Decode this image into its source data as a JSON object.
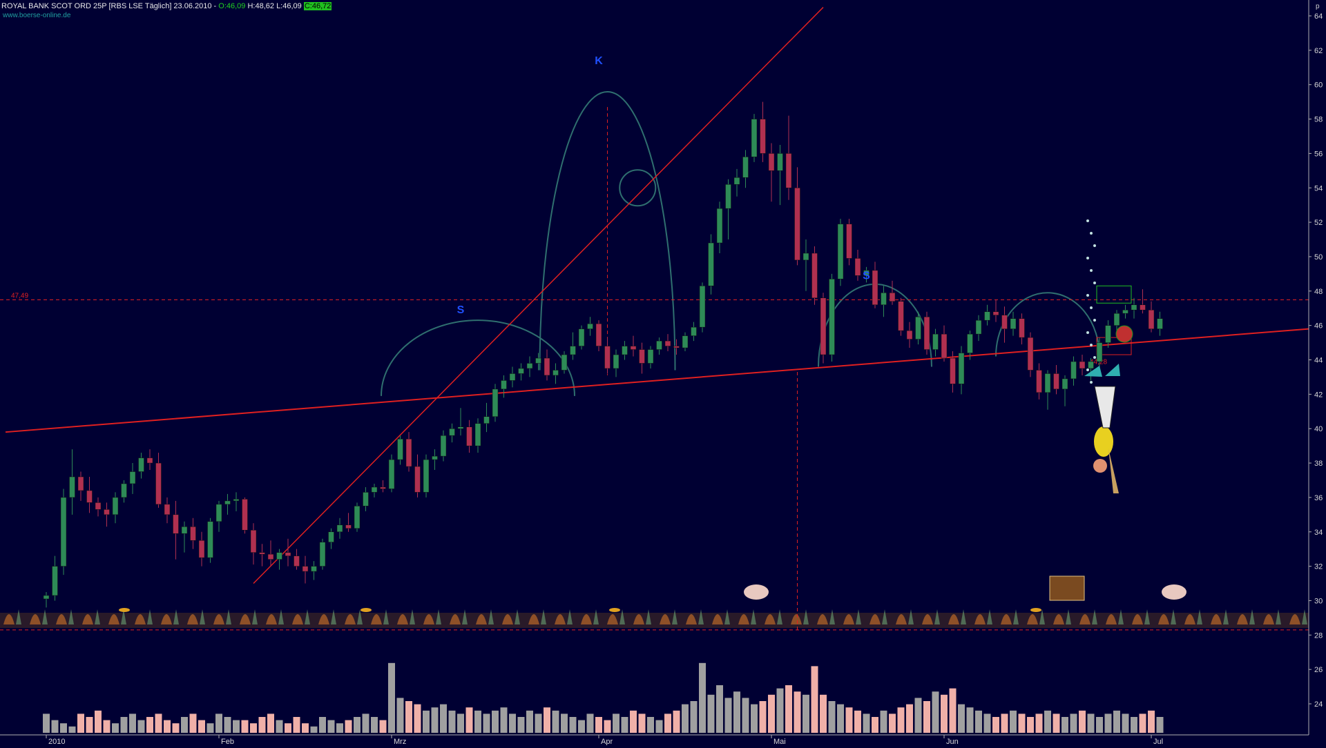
{
  "header": {
    "instrument": "ROYAL BANK SCOT ORD 25P [RBS LSE  Täglich] 23.06.2010 -",
    "open_label": "O:46,09",
    "high_label": "H:48,62",
    "low_label": "L:46,09",
    "close_label": "C:46,72",
    "watermark": "www.boerse-online.de"
  },
  "colors": {
    "background": "#000033",
    "up_candle": "#2e8b57",
    "down_candle": "#b03050",
    "volume_up": "#a0a0a0",
    "volume_down": "#f0b0a8",
    "trendline": "#e02020",
    "pattern_arc": "#2f6f6f",
    "label": "#2050ff"
  },
  "chart_data": {
    "type": "candlestick",
    "y_axis_unit": "p",
    "ylim": [
      22,
      65
    ],
    "y_ticks": [
      24,
      26,
      28,
      30,
      32,
      34,
      36,
      38,
      40,
      42,
      44,
      46,
      48,
      50,
      52,
      54,
      56,
      58,
      60,
      62,
      64
    ],
    "x_labels": [
      "2010",
      "Feb",
      "Mrz",
      "Apr",
      "Mai",
      "Jun",
      "Jul"
    ],
    "x_label_positions": [
      0,
      20,
      40,
      64,
      84,
      104,
      128
    ],
    "levels": [
      {
        "label": "47,49",
        "value": 47.49
      },
      {
        "label": "44,28",
        "value": 44.28
      }
    ],
    "pattern_labels": [
      "S",
      "K",
      "S"
    ],
    "candles": [
      [
        30.1,
        30.5,
        29.6,
        30.3
      ],
      [
        30.3,
        32.6,
        30.0,
        32.0
      ],
      [
        32.0,
        36.5,
        31.5,
        36.0
      ],
      [
        36.0,
        38.8,
        35.0,
        37.2
      ],
      [
        37.2,
        37.5,
        35.8,
        36.4
      ],
      [
        36.4,
        37.2,
        35.1,
        35.7
      ],
      [
        35.7,
        36.0,
        34.9,
        35.3
      ],
      [
        35.3,
        35.7,
        34.3,
        35.0
      ],
      [
        35.0,
        36.3,
        34.5,
        36.0
      ],
      [
        36.0,
        37.0,
        35.7,
        36.8
      ],
      [
        36.8,
        38.0,
        36.2,
        37.5
      ],
      [
        37.5,
        38.6,
        37.1,
        38.3
      ],
      [
        38.3,
        38.8,
        37.6,
        38.0
      ],
      [
        38.0,
        38.6,
        35.4,
        35.6
      ],
      [
        35.6,
        36.0,
        34.5,
        35.0
      ],
      [
        35.0,
        35.8,
        32.4,
        33.9
      ],
      [
        33.9,
        34.6,
        32.8,
        34.3
      ],
      [
        34.3,
        34.8,
        33.0,
        33.5
      ],
      [
        33.5,
        34.0,
        32.0,
        32.5
      ],
      [
        32.5,
        34.8,
        32.2,
        34.6
      ],
      [
        34.6,
        35.8,
        34.0,
        35.6
      ],
      [
        35.6,
        36.2,
        35.0,
        35.8
      ],
      [
        35.8,
        36.3,
        35.2,
        35.9
      ],
      [
        35.9,
        36.0,
        33.9,
        34.1
      ],
      [
        34.1,
        34.5,
        32.1,
        32.8
      ],
      [
        32.8,
        33.3,
        32.0,
        32.7
      ],
      [
        32.7,
        33.5,
        32.0,
        32.4
      ],
      [
        32.4,
        33.0,
        31.8,
        32.8
      ],
      [
        32.8,
        33.6,
        32.0,
        32.6
      ],
      [
        32.6,
        33.0,
        31.8,
        32.0
      ],
      [
        32.0,
        32.6,
        31.0,
        31.7
      ],
      [
        31.7,
        32.3,
        31.2,
        32.0
      ],
      [
        32.0,
        33.6,
        31.8,
        33.4
      ],
      [
        33.4,
        34.2,
        33.0,
        34.0
      ],
      [
        34.0,
        34.8,
        33.6,
        34.4
      ],
      [
        34.4,
        35.1,
        34.0,
        34.2
      ],
      [
        34.2,
        35.7,
        34.0,
        35.5
      ],
      [
        35.5,
        36.6,
        35.2,
        36.3
      ],
      [
        36.3,
        36.8,
        36.0,
        36.6
      ],
      [
        36.6,
        37.0,
        36.3,
        36.5
      ],
      [
        36.5,
        38.5,
        36.3,
        38.2
      ],
      [
        38.2,
        39.6,
        37.9,
        39.4
      ],
      [
        39.4,
        39.8,
        37.5,
        37.8
      ],
      [
        37.8,
        38.5,
        36.0,
        36.3
      ],
      [
        36.3,
        38.5,
        36.0,
        38.2
      ],
      [
        38.2,
        38.8,
        37.6,
        38.4
      ],
      [
        38.4,
        39.9,
        38.1,
        39.6
      ],
      [
        39.6,
        40.3,
        39.2,
        40.0
      ],
      [
        40.0,
        41.2,
        39.6,
        40.1
      ],
      [
        40.1,
        40.5,
        38.6,
        39.0
      ],
      [
        39.0,
        40.6,
        38.6,
        40.3
      ],
      [
        40.3,
        41.5,
        39.8,
        40.7
      ],
      [
        40.7,
        42.6,
        40.4,
        42.3
      ],
      [
        42.3,
        43.1,
        41.8,
        42.8
      ],
      [
        42.8,
        43.6,
        42.4,
        43.2
      ],
      [
        43.2,
        43.8,
        42.8,
        43.5
      ],
      [
        43.5,
        44.2,
        43.0,
        43.8
      ],
      [
        43.8,
        44.4,
        43.4,
        44.1
      ],
      [
        44.1,
        44.6,
        42.8,
        43.1
      ],
      [
        43.1,
        43.8,
        42.6,
        43.4
      ],
      [
        43.4,
        44.5,
        43.2,
        44.3
      ],
      [
        44.3,
        45.6,
        44.0,
        44.8
      ],
      [
        44.8,
        46.0,
        44.6,
        45.8
      ],
      [
        45.8,
        46.5,
        45.4,
        46.1
      ],
      [
        46.1,
        46.3,
        44.5,
        44.8
      ],
      [
        44.8,
        45.3,
        43.2,
        43.5
      ],
      [
        43.5,
        44.6,
        43.0,
        44.3
      ],
      [
        44.3,
        45.1,
        44.0,
        44.8
      ],
      [
        44.8,
        45.4,
        44.2,
        44.6
      ],
      [
        44.6,
        45.0,
        43.2,
        43.8
      ],
      [
        43.8,
        44.8,
        43.5,
        44.6
      ],
      [
        44.6,
        45.3,
        44.3,
        45.1
      ],
      [
        45.1,
        45.5,
        44.5,
        44.8
      ],
      [
        44.8,
        45.2,
        44.3,
        44.7
      ],
      [
        44.7,
        45.6,
        44.5,
        45.4
      ],
      [
        45.4,
        46.2,
        45.1,
        45.9
      ],
      [
        45.9,
        48.5,
        45.6,
        48.3
      ],
      [
        48.3,
        51.3,
        47.8,
        50.8
      ],
      [
        50.8,
        53.2,
        50.2,
        52.8
      ],
      [
        52.8,
        54.5,
        51.0,
        54.2
      ],
      [
        54.2,
        55.1,
        53.5,
        54.6
      ],
      [
        54.6,
        56.2,
        54.0,
        55.8
      ],
      [
        55.8,
        58.3,
        55.5,
        58.0
      ],
      [
        58.0,
        59.0,
        55.5,
        56.0
      ],
      [
        56.0,
        56.6,
        53.2,
        55.0
      ],
      [
        55.0,
        56.5,
        53.0,
        56.0
      ],
      [
        56.0,
        58.2,
        53.3,
        54.0
      ],
      [
        54.0,
        55.2,
        49.5,
        49.8
      ],
      [
        49.8,
        51.0,
        48.0,
        50.2
      ],
      [
        50.2,
        50.6,
        47.2,
        47.6
      ],
      [
        47.6,
        47.9,
        43.8,
        44.3
      ],
      [
        44.3,
        49.0,
        43.9,
        48.7
      ],
      [
        48.7,
        52.2,
        48.3,
        51.9
      ],
      [
        51.9,
        52.2,
        49.5,
        49.9
      ],
      [
        49.9,
        50.4,
        48.6,
        48.9
      ],
      [
        48.9,
        49.4,
        48.5,
        49.2
      ],
      [
        49.2,
        49.7,
        47.0,
        47.2
      ],
      [
        47.2,
        48.3,
        46.5,
        47.9
      ],
      [
        47.9,
        48.6,
        47.2,
        47.4
      ],
      [
        47.4,
        47.6,
        45.4,
        45.7
      ],
      [
        45.7,
        46.2,
        44.7,
        45.2
      ],
      [
        45.2,
        46.8,
        44.9,
        46.5
      ],
      [
        46.5,
        46.8,
        44.3,
        44.6
      ],
      [
        44.6,
        45.8,
        44.2,
        45.5
      ],
      [
        45.5,
        46.0,
        43.9,
        44.1
      ],
      [
        44.1,
        44.5,
        42.1,
        42.6
      ],
      [
        42.6,
        44.8,
        42.0,
        44.4
      ],
      [
        44.4,
        45.7,
        44.0,
        45.5
      ],
      [
        45.5,
        46.6,
        45.1,
        46.3
      ],
      [
        46.3,
        47.2,
        46.0,
        46.8
      ],
      [
        46.8,
        47.5,
        46.2,
        46.6
      ],
      [
        46.6,
        47.1,
        45.0,
        45.8
      ],
      [
        45.8,
        46.8,
        45.4,
        46.4
      ],
      [
        46.4,
        46.7,
        44.9,
        45.3
      ],
      [
        45.3,
        45.6,
        43.0,
        43.4
      ],
      [
        43.4,
        43.8,
        41.7,
        42.1
      ],
      [
        42.1,
        43.4,
        41.1,
        43.2
      ],
      [
        43.2,
        43.7,
        42.0,
        42.3
      ],
      [
        42.3,
        43.1,
        41.3,
        42.9
      ],
      [
        42.9,
        44.2,
        42.5,
        43.9
      ],
      [
        43.9,
        44.3,
        43.1,
        43.5
      ],
      [
        43.5,
        44.1,
        42.8,
        43.9
      ],
      [
        43.9,
        45.3,
        43.6,
        45.0
      ],
      [
        45.0,
        46.3,
        44.7,
        46.0
      ],
      [
        46.0,
        46.9,
        45.6,
        46.7
      ],
      [
        46.7,
        47.2,
        46.4,
        46.9
      ],
      [
        46.9,
        47.6,
        46.4,
        47.2
      ],
      [
        47.2,
        48.1,
        46.7,
        46.9
      ],
      [
        46.9,
        47.4,
        45.6,
        45.8
      ],
      [
        45.8,
        46.8,
        45.4,
        46.4
      ]
    ],
    "volume_pct": [
      6,
      4,
      3,
      2,
      6,
      5,
      7,
      4,
      3,
      5,
      6,
      4,
      5,
      6,
      4,
      3,
      5,
      6,
      4,
      3,
      6,
      5,
      4,
      4,
      3,
      5,
      6,
      4,
      3,
      5,
      3,
      2,
      5,
      4,
      3,
      4,
      5,
      6,
      5,
      4,
      22,
      11,
      10,
      9,
      7,
      8,
      9,
      7,
      6,
      8,
      7,
      6,
      7,
      8,
      6,
      5,
      7,
      6,
      8,
      7,
      6,
      5,
      4,
      6,
      5,
      4,
      6,
      5,
      7,
      6,
      5,
      4,
      6,
      7,
      9,
      10,
      22,
      12,
      15,
      11,
      13,
      11,
      9,
      10,
      12,
      14,
      15,
      13,
      12,
      21,
      12,
      10,
      9,
      8,
      7,
      6,
      5,
      7,
      6,
      8,
      9,
      11,
      10,
      13,
      12,
      14,
      9,
      8,
      7,
      6,
      5,
      6,
      7,
      6,
      5,
      6,
      7,
      6,
      5,
      6,
      7,
      6,
      5,
      6,
      7,
      6,
      5,
      6,
      7,
      5
    ]
  }
}
